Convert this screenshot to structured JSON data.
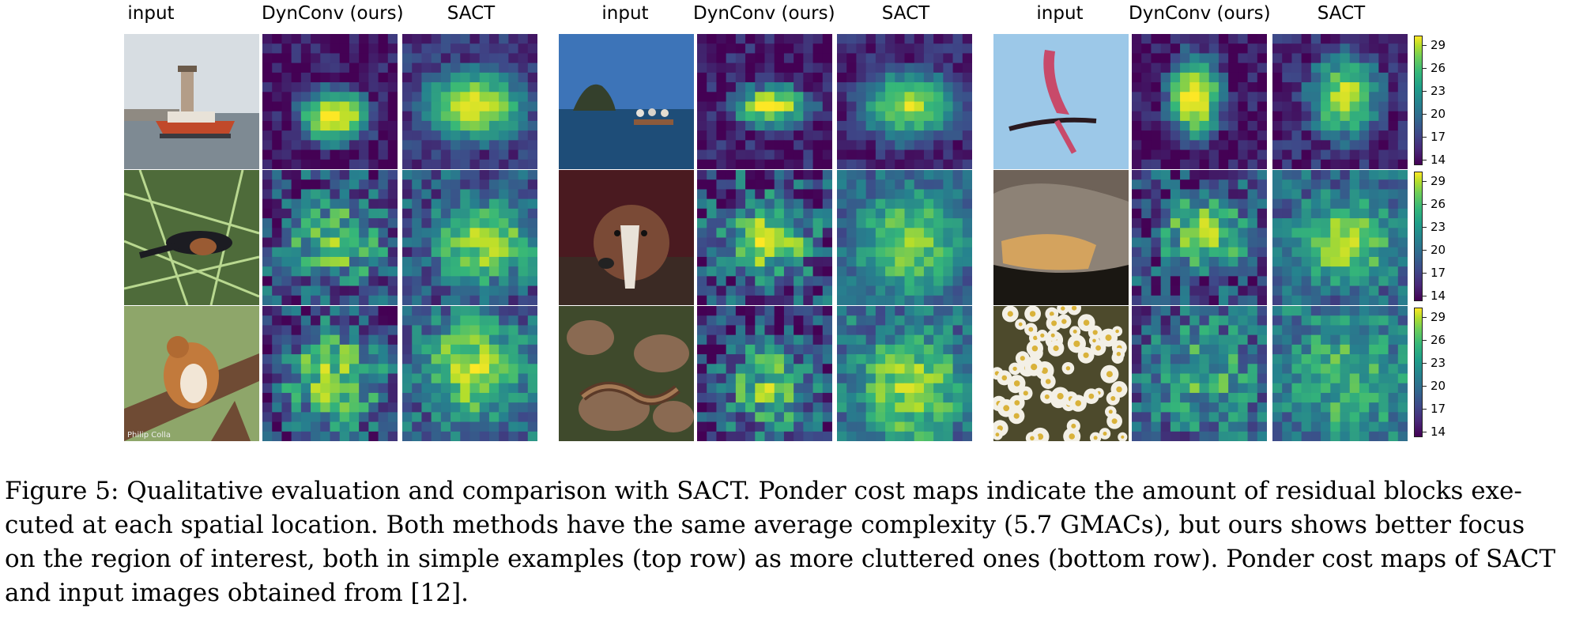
{
  "figure": {
    "column_headers": [
      "input",
      "DynConv (ours)",
      "SACT",
      "input",
      "DynConv (ours)",
      "SACT",
      "input",
      "DynConv (ours)",
      "SACT"
    ],
    "colorbar_ticks": [
      "29",
      "26",
      "23",
      "20",
      "17",
      "14"
    ],
    "colormap": [
      "#440154",
      "#3e4989",
      "#26828e",
      "#35b779",
      "#b5de2b",
      "#fde725"
    ],
    "watermark": "Philip Colla"
  },
  "caption": {
    "line1": "Figure 5: Qualitative evaluation and comparison with SACT. Ponder cost maps indicate the amount of residual blocks exe-",
    "line2": "cuted at each spatial location. Both methods have the same average complexity (5.7 GMACs), but ours shows better focus",
    "line3": "on the region of interest, both in simple examples (top row) as more cluttered ones (bottom row). Ponder cost maps of SACT",
    "line4": "and input images obtained from [12]."
  }
}
